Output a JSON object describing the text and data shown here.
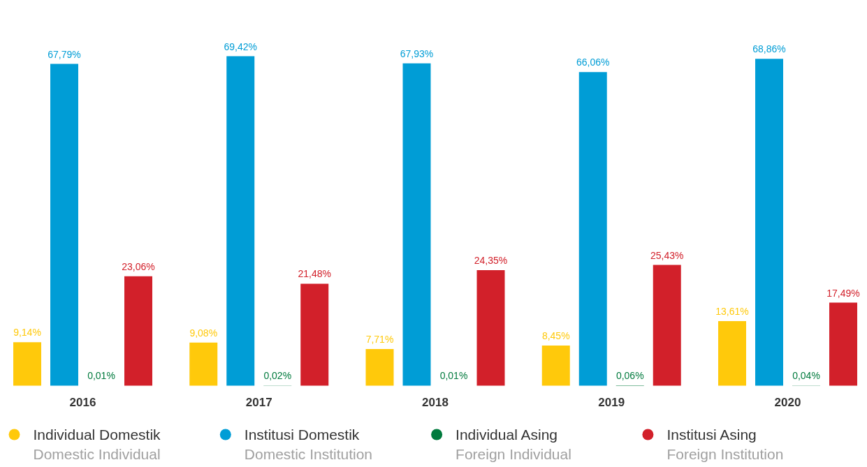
{
  "chart_data": {
    "type": "bar",
    "categories": [
      "2016",
      "2017",
      "2018",
      "2019",
      "2020"
    ],
    "series": [
      {
        "name": "Individual Domestik\nDomestic Individual",
        "color": "#ffc90b",
        "values": [
          9.14,
          9.08,
          7.71,
          8.45,
          13.61
        ],
        "value_labels": [
          "9,14%",
          "9,08%",
          "7,71%",
          "8,45%",
          "13,61%"
        ]
      },
      {
        "name": "Institusi Domestik\nDomestic Institution",
        "color": "#009dd6",
        "values": [
          67.79,
          69.42,
          67.93,
          66.06,
          68.86
        ],
        "value_labels": [
          "67,79%",
          "69,42%",
          "67,93%",
          "66,06%",
          "68,86%"
        ]
      },
      {
        "name": "Individual Asing\nForeign Individual",
        "color": "#007a3d",
        "values": [
          0.01,
          0.02,
          0.01,
          0.06,
          0.04
        ],
        "value_labels": [
          "0,01%",
          "0,02%",
          "0,01%",
          "0,06%",
          "0,04%"
        ]
      },
      {
        "name": "Institusi Asing\nForeign Institution",
        "color": "#d2202a",
        "values": [
          23.06,
          21.48,
          24.35,
          25.43,
          17.49
        ],
        "value_labels": [
          "23,06%",
          "21,48%",
          "24,35%",
          "25,43%",
          "17,49%"
        ]
      }
    ],
    "legend": "bottom",
    "grid": false
  }
}
